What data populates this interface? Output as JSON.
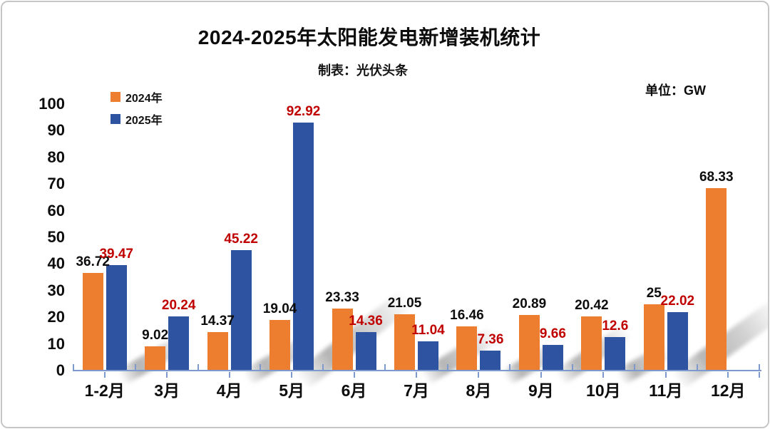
{
  "header": {
    "title": "2024-2025年太阳能发电新增装机统计",
    "subtitle": "制表：光伏头条",
    "unit_label": "单位：GW"
  },
  "chart_data": {
    "type": "bar",
    "title": "2024-2025年太阳能发电新增装机统计",
    "subtitle": "制表：光伏头条",
    "unit": "GW",
    "categories": [
      "1-2月",
      "3月",
      "4月",
      "5月",
      "6月",
      "7月",
      "8月",
      "9月",
      "10月",
      "11月",
      "12月"
    ],
    "series": [
      {
        "name": "2024年",
        "color": "#ed7d2f",
        "label_color": "#0d0d0d",
        "values": [
          36.72,
          9.02,
          14.37,
          19.04,
          23.33,
          21.05,
          16.46,
          20.89,
          20.42,
          25,
          68.33
        ]
      },
      {
        "name": "2025年",
        "color": "#2e54a1",
        "label_color": "#c00000",
        "values": [
          39.47,
          20.24,
          45.22,
          92.92,
          14.36,
          11.04,
          7.36,
          9.66,
          12.6,
          22.02,
          null
        ]
      }
    ],
    "xlabel": "",
    "ylabel": "",
    "ylim": [
      0,
      100
    ],
    "ytick_step": 10,
    "grid": false,
    "legend_position": "top-left",
    "axis_color": "#7e99ce",
    "data_labels": true
  }
}
